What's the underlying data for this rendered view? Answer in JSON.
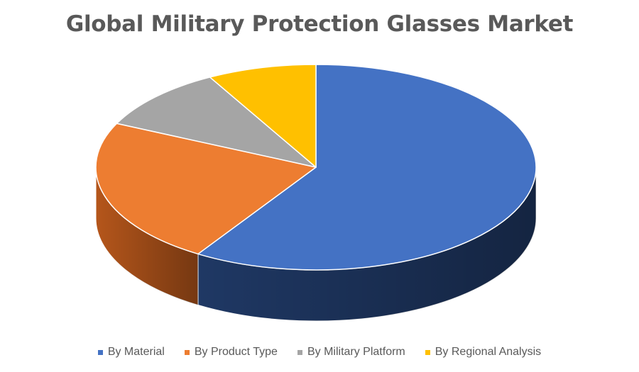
{
  "chart_data": {
    "type": "pie",
    "title": "Global Military Protection Glasses Market",
    "style": "3d",
    "legend_position": "bottom",
    "slices": [
      {
        "name": "By Material",
        "value": 59,
        "color": "#4472C4",
        "side_color": "#1F3864"
      },
      {
        "name": "By Product Type",
        "value": 23,
        "color": "#ED7D31",
        "side_color": "#B5561B"
      },
      {
        "name": "By Military Platform",
        "value": 10,
        "color": "#A5A5A5",
        "side_color": "#6E6E6E"
      },
      {
        "name": "By Regional Analysis",
        "value": 8,
        "color": "#FFC000",
        "side_color": "#B38600"
      }
    ]
  }
}
